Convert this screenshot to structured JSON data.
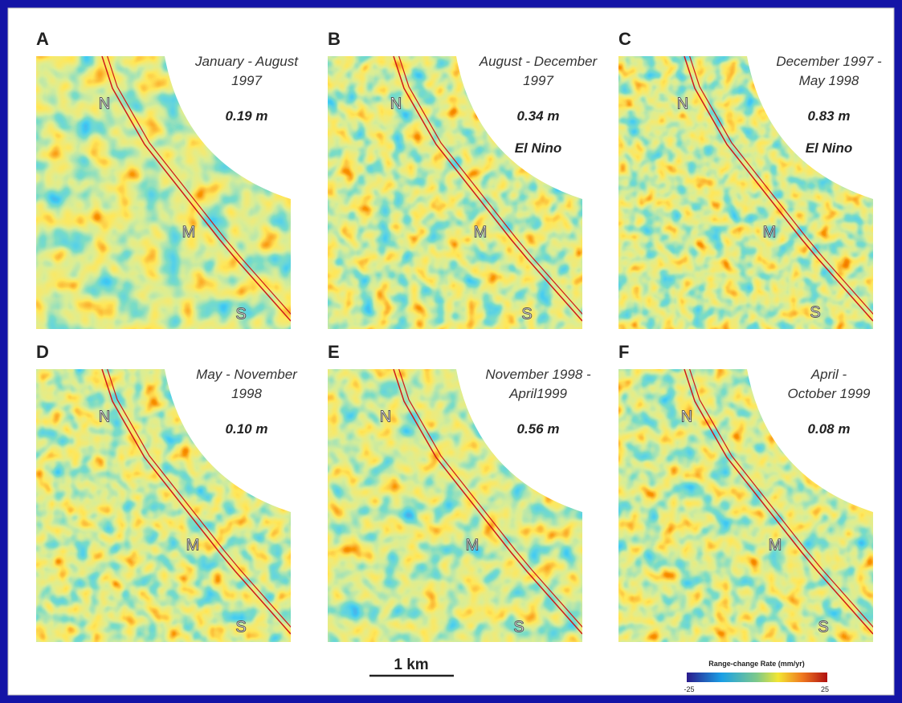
{
  "panels": [
    {
      "letter": "A",
      "period": [
        "January - August",
        "1997"
      ],
      "amount": "0.19 m",
      "note": null,
      "sites": [
        "N",
        "M",
        "S"
      ]
    },
    {
      "letter": "B",
      "period": [
        "August - December",
        "1997"
      ],
      "amount": "0.34 m",
      "note": "El Nino",
      "sites": [
        "N",
        "M",
        "S"
      ]
    },
    {
      "letter": "C",
      "period": [
        "December 1997 -",
        "May 1998"
      ],
      "amount": "0.83 m",
      "note": "El Nino",
      "sites": [
        "N",
        "M",
        "S"
      ]
    },
    {
      "letter": "D",
      "period": [
        "May - November",
        "1998"
      ],
      "amount": "0.10 m",
      "note": null,
      "sites": [
        "N",
        "M",
        "S"
      ]
    },
    {
      "letter": "E",
      "period": [
        "November 1998 -",
        "April1999"
      ],
      "amount": "0.56 m",
      "note": null,
      "sites": [
        "N",
        "M",
        "S"
      ]
    },
    {
      "letter": "F",
      "period": [
        "April -",
        "October 1999"
      ],
      "amount": "0.08 m",
      "note": null,
      "sites": [
        "N",
        "M",
        "S"
      ]
    }
  ],
  "scale_bar": "1 km",
  "colorbar": {
    "title": "Range-change Rate (mm/yr)",
    "min": -25,
    "max": 25
  }
}
